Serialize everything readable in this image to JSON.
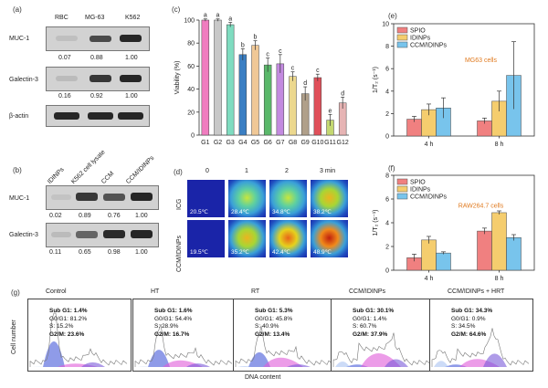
{
  "panel_a": {
    "tag": "(a)",
    "columns": [
      "RBC",
      "MG-63",
      "K562"
    ],
    "rows": [
      {
        "label": "MUC-1",
        "values": [
          "0.07",
          "0.88",
          "1.00"
        ],
        "band_intensity": [
          0.05,
          0.8,
          1.0
        ]
      },
      {
        "label": "Galectin-3",
        "values": [
          "0.16",
          "0.92",
          "1.00"
        ],
        "band_intensity": [
          0.1,
          0.9,
          1.0
        ]
      },
      {
        "label": "β-actin",
        "values": [],
        "band_intensity": [
          1.0,
          1.0,
          1.0
        ]
      }
    ]
  },
  "panel_b": {
    "tag": "(b)",
    "columns": [
      "IDINPs",
      "K562 cell lysate",
      "CCM",
      "CCM/IDINPs"
    ],
    "rows": [
      {
        "label": "MUC-1",
        "values": [
          "0.02",
          "0.89",
          "0.76",
          "1.00"
        ],
        "band_intensity": [
          0.05,
          0.9,
          0.75,
          1.0
        ]
      },
      {
        "label": "Galectin-3",
        "values": [
          "0.11",
          "0.65",
          "0.98",
          "1.00"
        ],
        "band_intensity": [
          0.1,
          0.6,
          0.95,
          1.0
        ]
      }
    ]
  },
  "panel_d": {
    "tag": "(d)",
    "times": [
      "0",
      "1",
      "2",
      "3 min"
    ],
    "rows": [
      {
        "label": "ICG",
        "temps": [
          "20.5℃",
          "28.4℃",
          "34.8℃",
          "38.2℃"
        ],
        "heat": [
          0,
          0.45,
          0.6,
          0.7
        ]
      },
      {
        "label": "CCM/IDINPs",
        "temps": [
          "19.5℃",
          "35.2℃",
          "42.4℃",
          "48.9℃"
        ],
        "heat": [
          0,
          0.7,
          0.85,
          1.0
        ]
      }
    ]
  },
  "panel_g": {
    "tag": "(g)",
    "ylabel": "Cell number",
    "xlabel": "DNA content",
    "panels": [
      {
        "title": "Control",
        "subg1": "Sub G1: 1.4%",
        "g0g1": "G0/G1: 81.2%",
        "s": "S: 15.2%",
        "g2m": "G2/M: 23.6%"
      },
      {
        "title": "HT",
        "subg1": "Sub G1: 1.6%",
        "g0g1": "G0/G1: 54.4%",
        "s": "S: 28.9%",
        "g2m": "G2/M: 16.7%"
      },
      {
        "title": "RT",
        "subg1": "Sub G1: 5.3%",
        "g0g1": "G0/G1: 45.8%",
        "s": "S: 40.9%",
        "g2m": "G2/M: 13.4%"
      },
      {
        "title": "CCM/IDINPs",
        "subg1": "Sub G1: 30.1%",
        "g0g1": "G0/G1: 1.4%",
        "s": "S: 60.7%",
        "g2m": "G2/M: 37.9%"
      },
      {
        "title": "CCM/IDINPs + HRT",
        "subg1": "Sub G1: 34.3%",
        "g0g1": "G0/G1: 0.9%",
        "s": "S: 34.5%",
        "g2m": "G2/M: 64.6%"
      }
    ]
  },
  "colors": {
    "spio": "#f08080",
    "idinps": "#f5cd6e",
    "ccm_idinps": "#78c4ec",
    "thermal_cold": "#1a24a8",
    "annotation": "#e07a1f"
  },
  "chart_data": [
    {
      "id": "c",
      "tag": "(c)",
      "type": "bar",
      "title": "",
      "xlabel": "",
      "ylabel": "Viability (%)",
      "ylim": [
        0,
        100
      ],
      "yticks": [
        0,
        20,
        40,
        60,
        80,
        100
      ],
      "categories": [
        "G1",
        "G2",
        "G3",
        "G4",
        "G5",
        "G6",
        "G7",
        "G8",
        "G9",
        "G10",
        "G11",
        "G12"
      ],
      "values": [
        100,
        100,
        96,
        70,
        78,
        61,
        62,
        51,
        36,
        50,
        13,
        28
      ],
      "errors": [
        1,
        1,
        2,
        5,
        4,
        6,
        8,
        4,
        6,
        3,
        5,
        5
      ],
      "letters": [
        "a",
        "a",
        "a",
        "b",
        "b",
        "c",
        "c",
        "c",
        "d",
        "c",
        "e",
        "d"
      ],
      "bar_colors": [
        "#f07cbf",
        "#c8c8c8",
        "#7fdcc0",
        "#3a7fc4",
        "#f0c896",
        "#5ab86a",
        "#c38ae0",
        "#ecd88e",
        "#b0a08a",
        "#e0505a",
        "#c4d870",
        "#e6b4b4"
      ]
    },
    {
      "id": "e",
      "tag": "(e)",
      "type": "bar",
      "title": "",
      "annotation": "MG63 cells",
      "xlabel": "",
      "ylabel": "1/T₂ (s⁻¹)",
      "ylim": [
        0,
        10
      ],
      "yticks": [
        0,
        2,
        4,
        6,
        8,
        10
      ],
      "categories": [
        "4 h",
        "8 h"
      ],
      "series": [
        {
          "name": "SPIO",
          "values": [
            1.5,
            1.35
          ],
          "errors": [
            0.25,
            0.25
          ]
        },
        {
          "name": "IDINPs",
          "values": [
            2.35,
            3.1
          ],
          "errors": [
            0.5,
            0.9
          ]
        },
        {
          "name": "CCM/IDINPs",
          "values": [
            2.5,
            5.4
          ],
          "errors": [
            0.9,
            3.0
          ]
        }
      ],
      "legend": "top-left"
    },
    {
      "id": "f",
      "tag": "(f)",
      "type": "bar",
      "title": "",
      "annotation": "RAW264.7 cells",
      "xlabel": "",
      "ylabel": "1/T₂ (s⁻¹)",
      "ylim": [
        0,
        8
      ],
      "yticks": [
        0,
        2,
        4,
        6,
        8
      ],
      "categories": [
        "4 h",
        "8 h"
      ],
      "series": [
        {
          "name": "SPIO",
          "values": [
            1.05,
            3.3
          ],
          "errors": [
            0.3,
            0.25
          ]
        },
        {
          "name": "IDINPs",
          "values": [
            2.55,
            4.85
          ],
          "errors": [
            0.3,
            0.15
          ]
        },
        {
          "name": "CCM/IDINPs",
          "values": [
            1.45,
            2.75
          ],
          "errors": [
            0.1,
            0.25
          ]
        }
      ],
      "legend": "top-left"
    }
  ]
}
